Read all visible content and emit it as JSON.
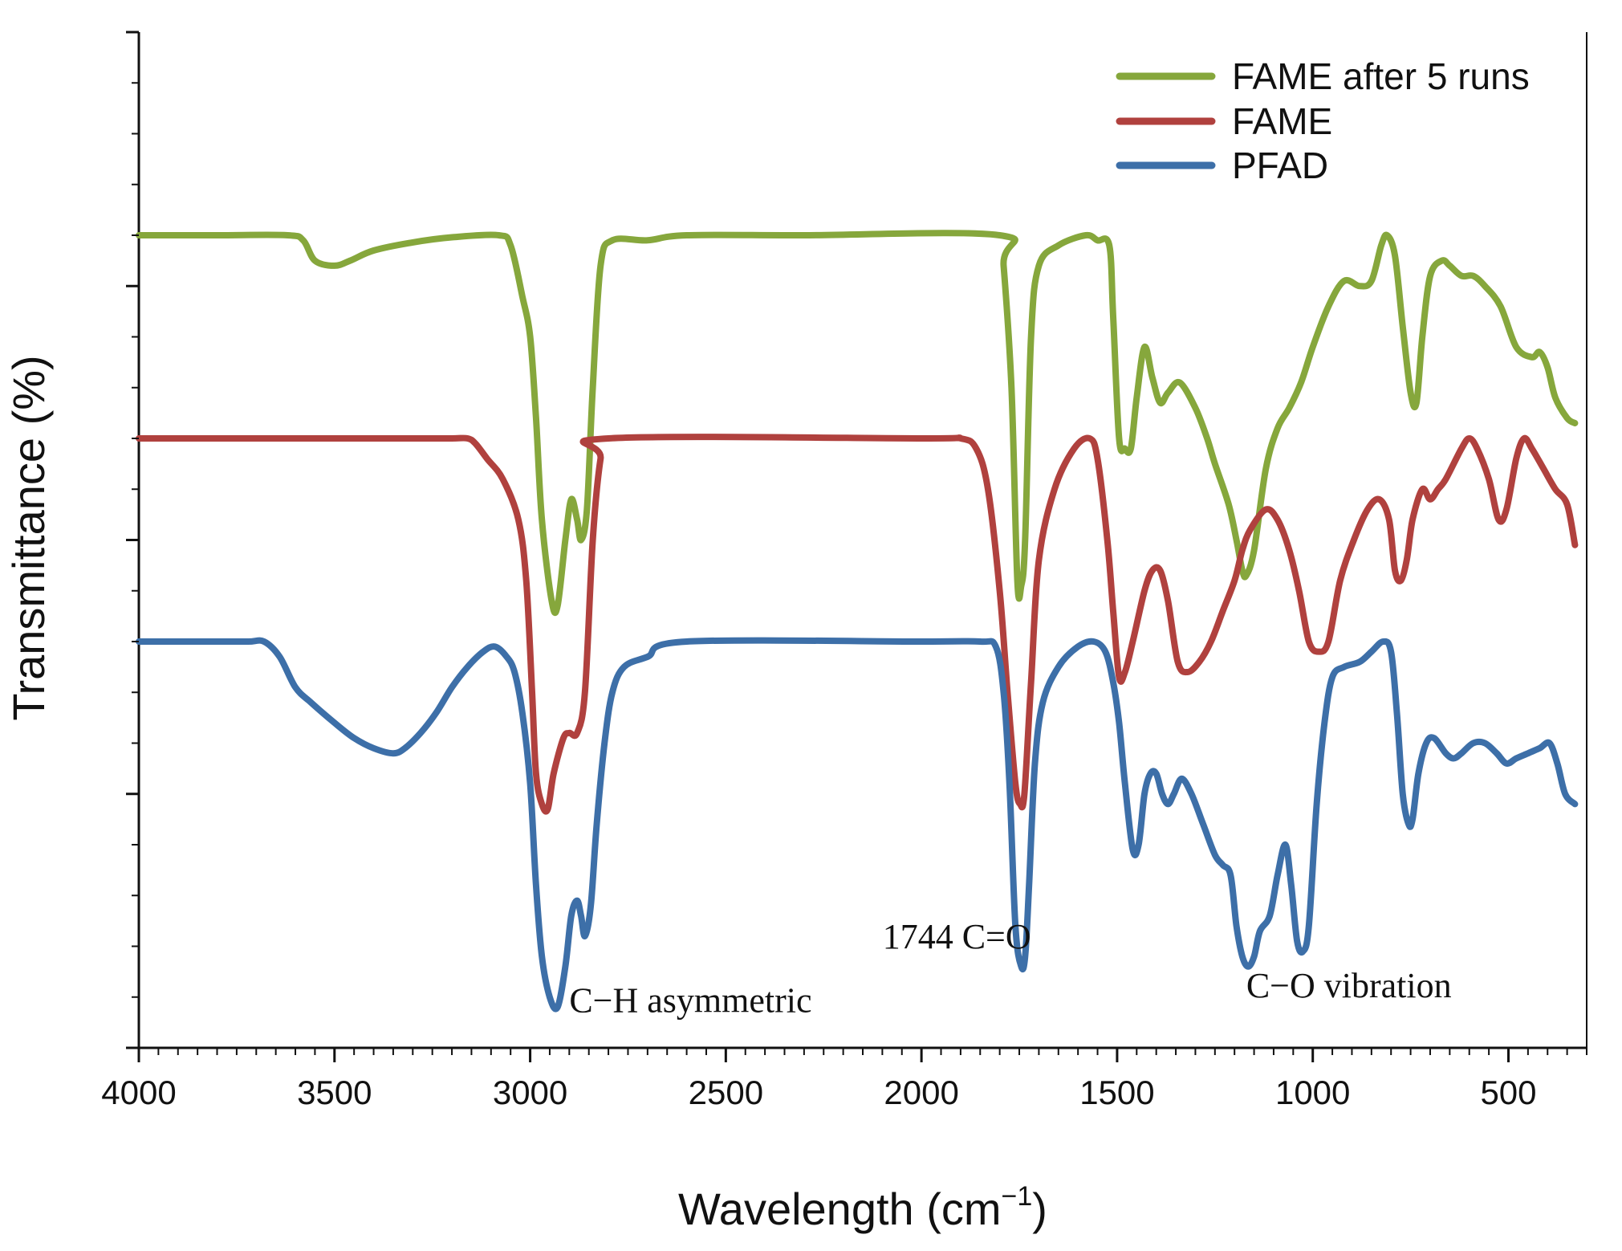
{
  "chart_data": {
    "type": "line",
    "title": "",
    "xlabel": "Wavelength (cm",
    "xlabel_sup": "−1",
    "xlabel_close": ")",
    "ylabel": "Transmittance (%)",
    "xlim": [
      4000,
      300
    ],
    "ylim": [
      0,
      100
    ],
    "x_ticks": [
      4000,
      3500,
      3000,
      2500,
      2000,
      1500,
      1000,
      500
    ],
    "x_tick_labels": [
      "4000",
      "3500",
      "3000",
      "2500",
      "2000",
      "1500",
      "1000",
      "500"
    ],
    "legend": [
      "FAME after 5 runs",
      "FAME",
      "PFAD"
    ],
    "legend_position": "top-right",
    "annotations": [
      {
        "text": "C−H asymmetric",
        "x": 2900,
        "y": 3.5
      },
      {
        "text": "1744 C=O",
        "x": 1720,
        "y": 9.8
      },
      {
        "text": "C−O vibration",
        "x": 1170,
        "y": 5.0
      }
    ],
    "series": [
      {
        "name": "FAME after 5 runs",
        "color": "#86a73c",
        "points": [
          [
            4000,
            80
          ],
          [
            3800,
            80
          ],
          [
            3620,
            80
          ],
          [
            3580,
            79.5
          ],
          [
            3550,
            77.5
          ],
          [
            3500,
            77
          ],
          [
            3460,
            77.5
          ],
          [
            3400,
            78.5
          ],
          [
            3300,
            79.3
          ],
          [
            3200,
            79.8
          ],
          [
            3080,
            80
          ],
          [
            3050,
            79
          ],
          [
            3020,
            74
          ],
          [
            3000,
            70
          ],
          [
            2985,
            62
          ],
          [
            2970,
            52
          ],
          [
            2945,
            44
          ],
          [
            2930,
            43.5
          ],
          [
            2910,
            50
          ],
          [
            2895,
            54
          ],
          [
            2880,
            52
          ],
          [
            2870,
            50
          ],
          [
            2855,
            53
          ],
          [
            2840,
            65
          ],
          [
            2820,
            77
          ],
          [
            2790,
            79.5
          ],
          [
            2700,
            79.5
          ],
          [
            2600,
            80
          ],
          [
            2300,
            80
          ],
          [
            1800,
            80
          ],
          [
            1790,
            77
          ],
          [
            1770,
            65
          ],
          [
            1755,
            46
          ],
          [
            1745,
            45.5
          ],
          [
            1735,
            50
          ],
          [
            1720,
            70
          ],
          [
            1700,
            77
          ],
          [
            1650,
            79
          ],
          [
            1580,
            80
          ],
          [
            1550,
            79.5
          ],
          [
            1520,
            79
          ],
          [
            1510,
            72
          ],
          [
            1495,
            60
          ],
          [
            1480,
            59
          ],
          [
            1465,
            59
          ],
          [
            1450,
            64
          ],
          [
            1430,
            69
          ],
          [
            1410,
            66
          ],
          [
            1390,
            63.5
          ],
          [
            1370,
            64.5
          ],
          [
            1340,
            65.5
          ],
          [
            1300,
            63
          ],
          [
            1270,
            60
          ],
          [
            1250,
            57.5
          ],
          [
            1215,
            53.5
          ],
          [
            1195,
            50
          ],
          [
            1180,
            47
          ],
          [
            1170,
            46.5
          ],
          [
            1150,
            49
          ],
          [
            1120,
            57
          ],
          [
            1090,
            61
          ],
          [
            1060,
            63
          ],
          [
            1030,
            65.5
          ],
          [
            1000,
            69
          ],
          [
            960,
            73
          ],
          [
            920,
            75.5
          ],
          [
            880,
            75
          ],
          [
            850,
            75.5
          ],
          [
            825,
            79
          ],
          [
            810,
            80
          ],
          [
            790,
            78
          ],
          [
            770,
            71
          ],
          [
            750,
            64.5
          ],
          [
            735,
            63.5
          ],
          [
            720,
            70
          ],
          [
            700,
            76
          ],
          [
            670,
            77.5
          ],
          [
            650,
            77
          ],
          [
            620,
            76
          ],
          [
            590,
            76
          ],
          [
            560,
            75
          ],
          [
            520,
            73
          ],
          [
            480,
            69
          ],
          [
            440,
            68
          ],
          [
            420,
            68.5
          ],
          [
            400,
            67
          ],
          [
            380,
            64
          ],
          [
            350,
            62
          ],
          [
            330,
            61.5
          ]
        ]
      },
      {
        "name": "FAME",
        "color": "#b0413e",
        "points": [
          [
            4000,
            60
          ],
          [
            3800,
            60
          ],
          [
            3300,
            60
          ],
          [
            3200,
            60
          ],
          [
            3160,
            60
          ],
          [
            3140,
            59.5
          ],
          [
            3110,
            58
          ],
          [
            3070,
            56
          ],
          [
            3030,
            52
          ],
          [
            3010,
            46
          ],
          [
            2995,
            35
          ],
          [
            2985,
            27
          ],
          [
            2970,
            24
          ],
          [
            2955,
            23.5
          ],
          [
            2940,
            27
          ],
          [
            2915,
            30.5
          ],
          [
            2900,
            31
          ],
          [
            2880,
            31
          ],
          [
            2860,
            35
          ],
          [
            2840,
            50
          ],
          [
            2820,
            58
          ],
          [
            2800,
            60
          ],
          [
            2000,
            60
          ],
          [
            1900,
            60
          ],
          [
            1860,
            59
          ],
          [
            1830,
            55
          ],
          [
            1800,
            45
          ],
          [
            1780,
            35
          ],
          [
            1760,
            26
          ],
          [
            1748,
            24
          ],
          [
            1737,
            25
          ],
          [
            1720,
            36
          ],
          [
            1700,
            48
          ],
          [
            1660,
            55
          ],
          [
            1610,
            59
          ],
          [
            1570,
            60
          ],
          [
            1550,
            58
          ],
          [
            1525,
            50
          ],
          [
            1510,
            43
          ],
          [
            1495,
            36.5
          ],
          [
            1480,
            37
          ],
          [
            1460,
            40
          ],
          [
            1430,
            45
          ],
          [
            1410,
            47
          ],
          [
            1390,
            47
          ],
          [
            1370,
            44
          ],
          [
            1345,
            38
          ],
          [
            1320,
            37
          ],
          [
            1290,
            38
          ],
          [
            1260,
            40
          ],
          [
            1230,
            43
          ],
          [
            1200,
            46
          ],
          [
            1180,
            49
          ],
          [
            1160,
            51
          ],
          [
            1120,
            53
          ],
          [
            1090,
            52
          ],
          [
            1060,
            49
          ],
          [
            1035,
            45
          ],
          [
            1010,
            40
          ],
          [
            985,
            39
          ],
          [
            960,
            40
          ],
          [
            930,
            46
          ],
          [
            895,
            50
          ],
          [
            860,
            53
          ],
          [
            830,
            54
          ],
          [
            805,
            52
          ],
          [
            790,
            47
          ],
          [
            775,
            46
          ],
          [
            760,
            48
          ],
          [
            745,
            52
          ],
          [
            720,
            55
          ],
          [
            700,
            54
          ],
          [
            680,
            55
          ],
          [
            660,
            56
          ],
          [
            620,
            59
          ],
          [
            600,
            60
          ],
          [
            580,
            59
          ],
          [
            550,
            56
          ],
          [
            525,
            52
          ],
          [
            505,
            53
          ],
          [
            480,
            58
          ],
          [
            460,
            60
          ],
          [
            440,
            59
          ],
          [
            410,
            57
          ],
          [
            380,
            55
          ],
          [
            350,
            53.5
          ],
          [
            330,
            49.5
          ]
        ]
      },
      {
        "name": "PFAD",
        "color": "#3d6fa8",
        "points": [
          [
            4000,
            40
          ],
          [
            3800,
            40
          ],
          [
            3720,
            40
          ],
          [
            3680,
            40
          ],
          [
            3640,
            38.5
          ],
          [
            3600,
            35.5
          ],
          [
            3560,
            34
          ],
          [
            3500,
            32
          ],
          [
            3450,
            30.5
          ],
          [
            3400,
            29.5
          ],
          [
            3350,
            29
          ],
          [
            3320,
            29.5
          ],
          [
            3280,
            31
          ],
          [
            3240,
            33
          ],
          [
            3200,
            35.5
          ],
          [
            3160,
            37.5
          ],
          [
            3120,
            39
          ],
          [
            3090,
            39.5
          ],
          [
            3060,
            38.5
          ],
          [
            3040,
            37
          ],
          [
            3020,
            33
          ],
          [
            3000,
            26
          ],
          [
            2985,
            16
          ],
          [
            2970,
            9
          ],
          [
            2950,
            5
          ],
          [
            2930,
            4
          ],
          [
            2910,
            8
          ],
          [
            2895,
            13
          ],
          [
            2880,
            14.5
          ],
          [
            2870,
            13
          ],
          [
            2860,
            11
          ],
          [
            2845,
            14
          ],
          [
            2830,
            22
          ],
          [
            2810,
            30
          ],
          [
            2790,
            35
          ],
          [
            2760,
            37.5
          ],
          [
            2700,
            38.5
          ],
          [
            2600,
            40
          ],
          [
            2000,
            40
          ],
          [
            1850,
            40
          ],
          [
            1810,
            39.5
          ],
          [
            1790,
            35
          ],
          [
            1775,
            26
          ],
          [
            1760,
            12
          ],
          [
            1745,
            8
          ],
          [
            1735,
            9
          ],
          [
            1725,
            16
          ],
          [
            1710,
            28
          ],
          [
            1690,
            34
          ],
          [
            1650,
            37.5
          ],
          [
            1600,
            39.5
          ],
          [
            1560,
            40
          ],
          [
            1530,
            39
          ],
          [
            1510,
            36
          ],
          [
            1495,
            32
          ],
          [
            1480,
            26
          ],
          [
            1460,
            19.5
          ],
          [
            1445,
            20
          ],
          [
            1430,
            25
          ],
          [
            1415,
            27
          ],
          [
            1400,
            27
          ],
          [
            1385,
            25
          ],
          [
            1370,
            24
          ],
          [
            1355,
            25
          ],
          [
            1335,
            26.5
          ],
          [
            1310,
            25
          ],
          [
            1280,
            22
          ],
          [
            1250,
            19
          ],
          [
            1230,
            18
          ],
          [
            1210,
            17
          ],
          [
            1195,
            12
          ],
          [
            1180,
            9
          ],
          [
            1165,
            8
          ],
          [
            1150,
            9
          ],
          [
            1135,
            11.5
          ],
          [
            1110,
            13
          ],
          [
            1090,
            17
          ],
          [
            1070,
            20
          ],
          [
            1055,
            16
          ],
          [
            1040,
            10.5
          ],
          [
            1025,
            9.5
          ],
          [
            1010,
            12
          ],
          [
            990,
            24
          ],
          [
            970,
            32
          ],
          [
            950,
            36.5
          ],
          [
            920,
            37.5
          ],
          [
            880,
            38
          ],
          [
            850,
            39
          ],
          [
            820,
            40
          ],
          [
            800,
            39
          ],
          [
            785,
            33
          ],
          [
            770,
            25
          ],
          [
            755,
            22
          ],
          [
            745,
            22.5
          ],
          [
            730,
            27
          ],
          [
            710,
            30
          ],
          [
            690,
            30.5
          ],
          [
            660,
            29
          ],
          [
            640,
            28.5
          ],
          [
            620,
            29
          ],
          [
            590,
            30
          ],
          [
            560,
            30
          ],
          [
            530,
            29
          ],
          [
            505,
            28
          ],
          [
            480,
            28.5
          ],
          [
            450,
            29
          ],
          [
            420,
            29.5
          ],
          [
            395,
            30
          ],
          [
            375,
            28
          ],
          [
            355,
            25
          ],
          [
            330,
            24
          ]
        ]
      }
    ]
  }
}
